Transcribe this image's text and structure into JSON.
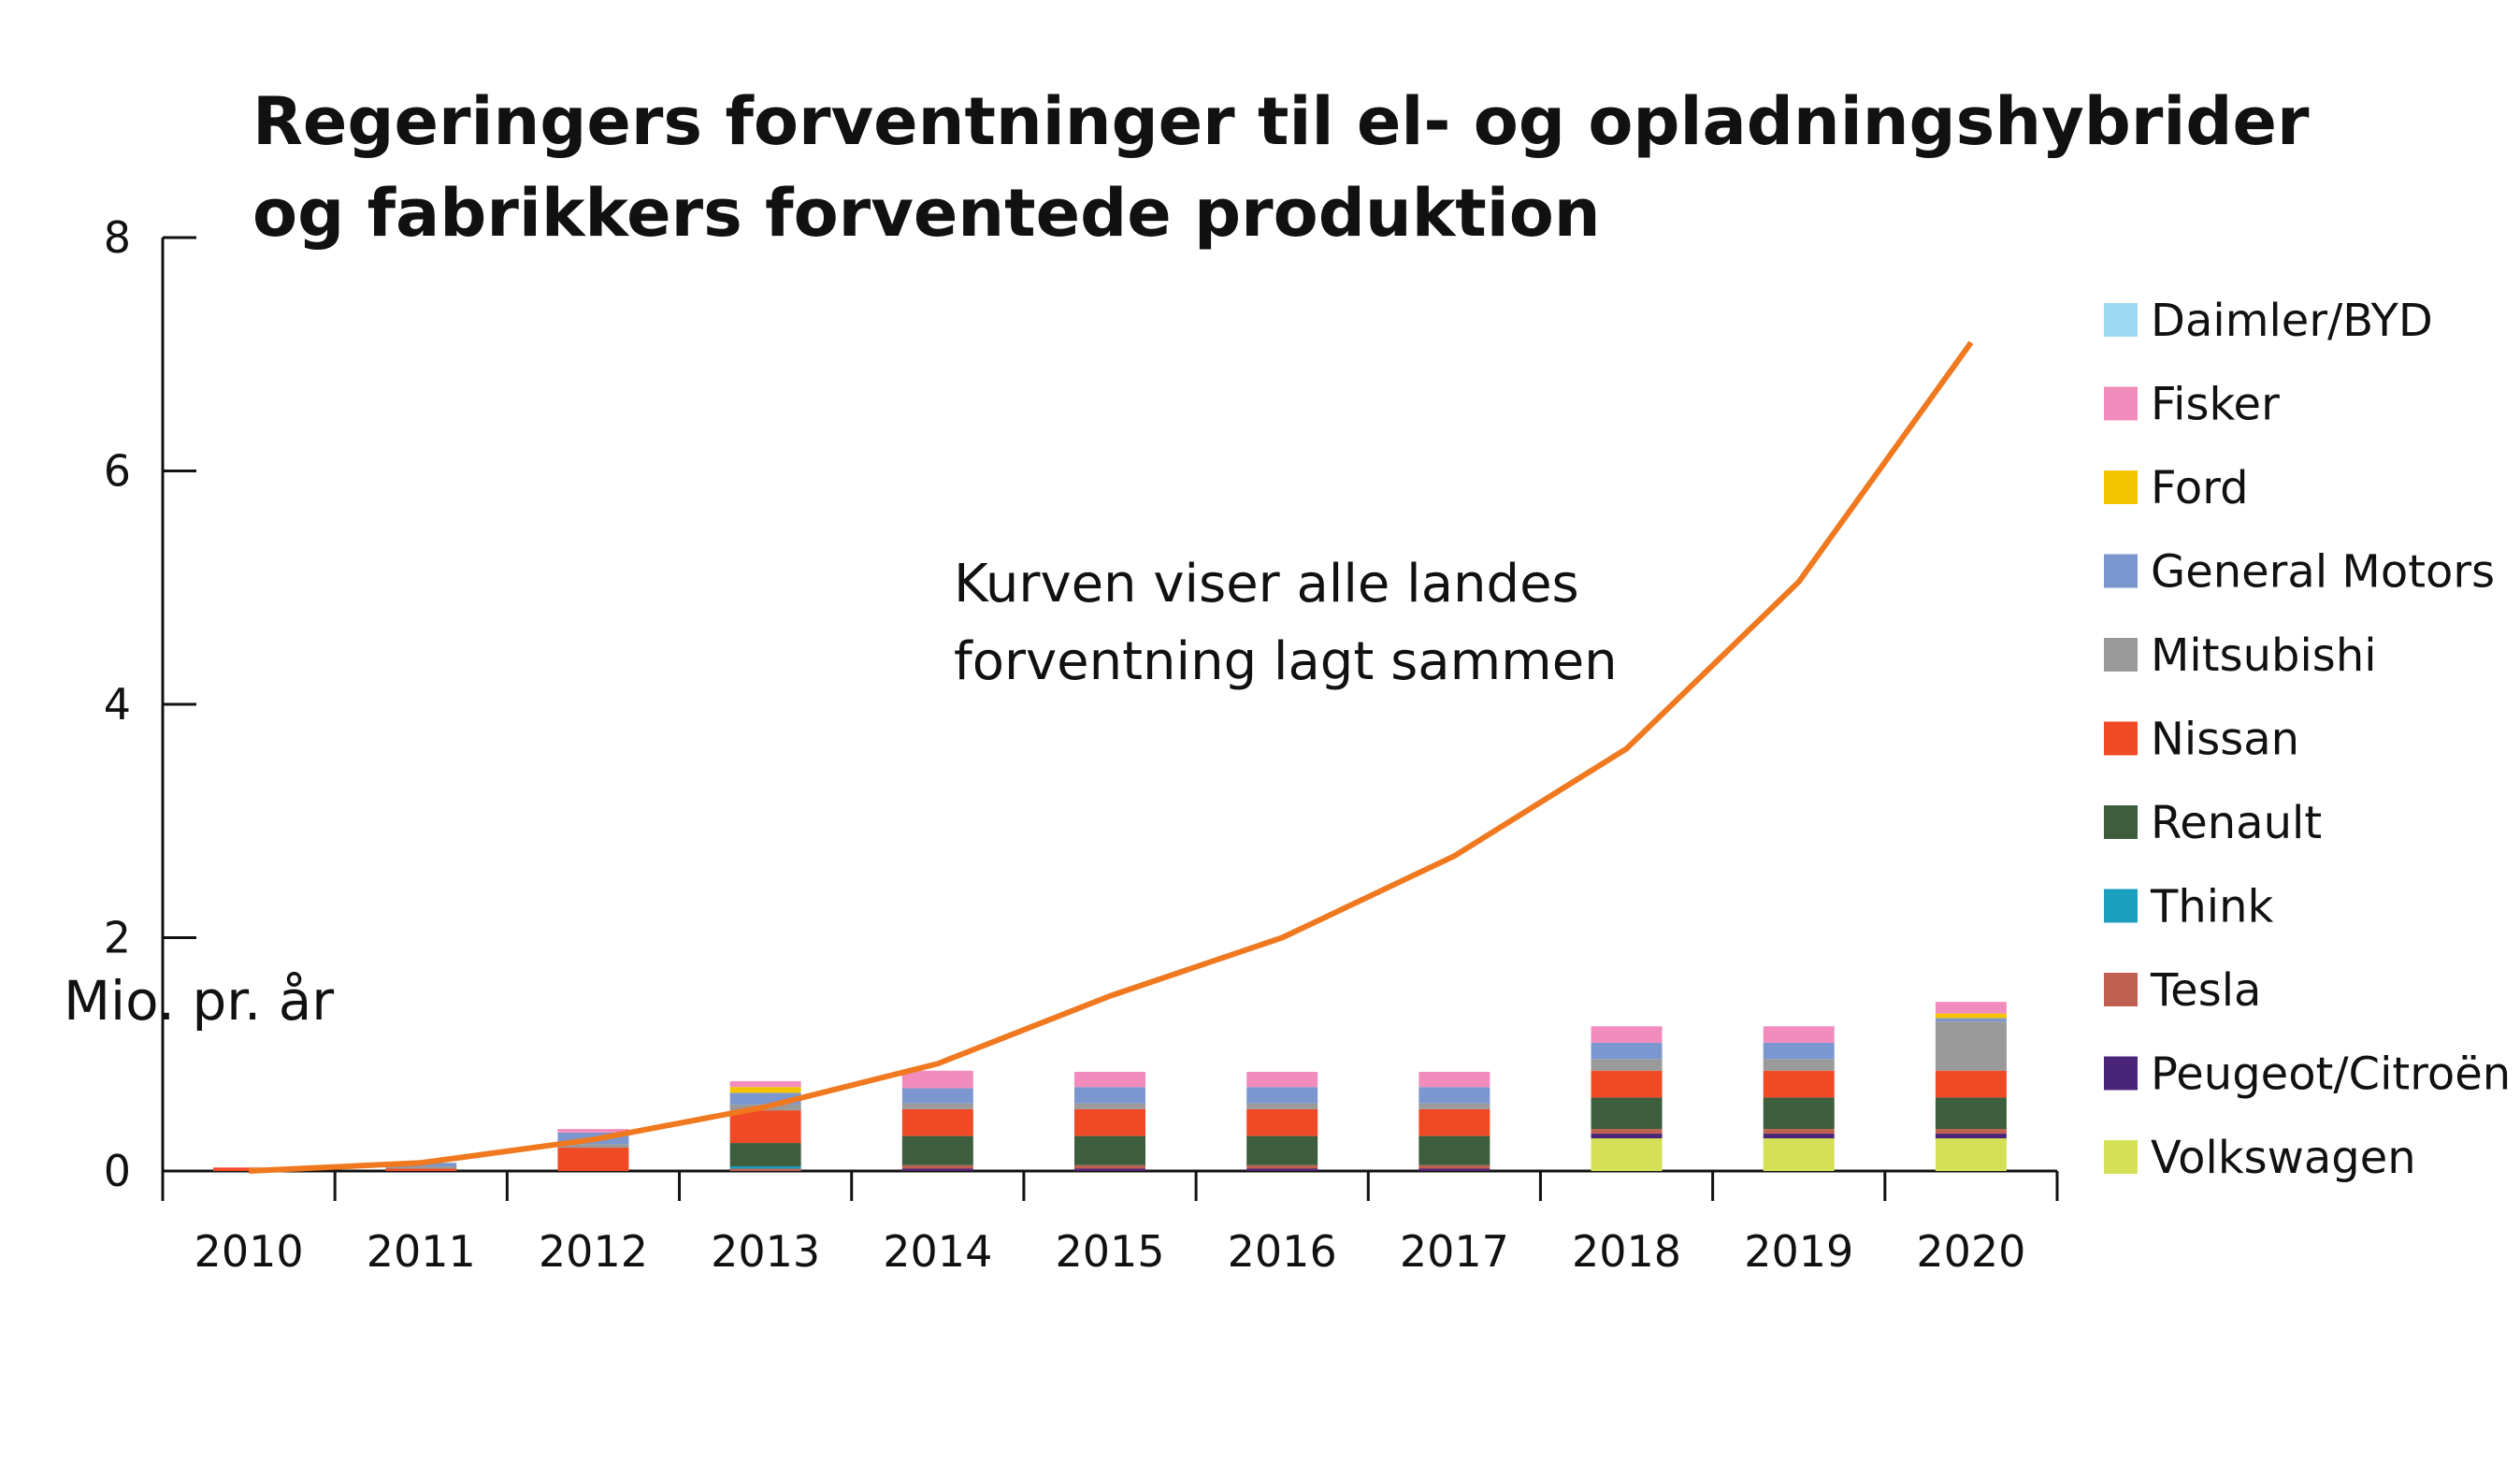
{
  "chart_data": {
    "type": "bar",
    "title": "Regeringers forventninger til el- og opladningshybrider og fabrikkers forventede produktion",
    "title_lines": [
      "Regeringers forventninger til el- og opladningshybrider",
      "og fabrikkers forventede produktion"
    ],
    "ylabel": "Mio. pr. år",
    "xlabel": "",
    "ylim": [
      0,
      8
    ],
    "yticks": [
      0,
      2,
      4,
      6,
      8
    ],
    "ytick_labels": [
      "0",
      "2",
      "4",
      "6",
      "8"
    ],
    "stacked": true,
    "categories": [
      "2010",
      "2011",
      "2012",
      "2013",
      "2014",
      "2015",
      "2016",
      "2017",
      "2018",
      "2019",
      "2020"
    ],
    "series": [
      {
        "name": "Volkswagen",
        "color": "#d4e157",
        "values": [
          0,
          0,
          0,
          0,
          0,
          0,
          0,
          0,
          0.28,
          0.28,
          0.28
        ]
      },
      {
        "name": "Peugeot/Citroën",
        "color": "#4a2478",
        "values": [
          0,
          0,
          0,
          0,
          0.02,
          0.02,
          0.02,
          0.02,
          0.04,
          0.04,
          0.04
        ]
      },
      {
        "name": "Tesla",
        "color": "#c06050",
        "values": [
          0,
          0,
          0,
          0.02,
          0.03,
          0.03,
          0.03,
          0.03,
          0.04,
          0.04,
          0.04
        ]
      },
      {
        "name": "Think",
        "color": "#1a9fbf",
        "values": [
          0,
          0,
          0,
          0.02,
          0,
          0,
          0,
          0,
          0,
          0,
          0
        ]
      },
      {
        "name": "Renault",
        "color": "#3d5e3d",
        "values": [
          0,
          0,
          0,
          0.2,
          0.25,
          0.25,
          0.25,
          0.25,
          0.27,
          0.27,
          0.27
        ]
      },
      {
        "name": "Nissan",
        "color": "#ef4a25",
        "values": [
          0.03,
          0.02,
          0.2,
          0.28,
          0.23,
          0.23,
          0.23,
          0.23,
          0.23,
          0.23,
          0.23
        ]
      },
      {
        "name": "Mitsubishi",
        "color": "#9a9a9a",
        "values": [
          0,
          0.02,
          0.03,
          0.05,
          0.05,
          0.05,
          0.05,
          0.05,
          0.1,
          0.1,
          0.42
        ]
      },
      {
        "name": "General Motors",
        "color": "#7c97d0",
        "values": [
          0,
          0.03,
          0.1,
          0.1,
          0.13,
          0.14,
          0.14,
          0.14,
          0.14,
          0.14,
          0.03
        ]
      },
      {
        "name": "Ford",
        "color": "#f5c400",
        "values": [
          0,
          0,
          0,
          0.05,
          0,
          0,
          0,
          0,
          0,
          0,
          0.04
        ]
      },
      {
        "name": "Fisker",
        "color": "#f28cbd",
        "values": [
          0,
          0,
          0.03,
          0.05,
          0.15,
          0.13,
          0.13,
          0.13,
          0.14,
          0.14,
          0.1
        ]
      },
      {
        "name": "Daimler/BYD",
        "color": "#9fd8f2",
        "values": [
          0,
          0,
          0,
          0,
          0,
          0,
          0,
          0,
          0,
          0,
          0
        ]
      }
    ],
    "line": {
      "color": "#f0781e",
      "values": [
        0,
        0.07,
        0.27,
        0.55,
        0.92,
        1.5,
        2.0,
        2.7,
        3.62,
        5.05,
        7.1
      ]
    },
    "annotation": [
      "Kurven viser alle landes",
      "forventning lagt sammen"
    ],
    "legend": {
      "placement": "right",
      "entries": [
        "Daimler/BYD",
        "Fisker",
        "Ford",
        "General Motors",
        "Mitsubishi",
        "Nissan",
        "Renault",
        "Think",
        "Tesla",
        "Peugeot/Citroën",
        "Volkswagen"
      ]
    },
    "grid": false
  }
}
